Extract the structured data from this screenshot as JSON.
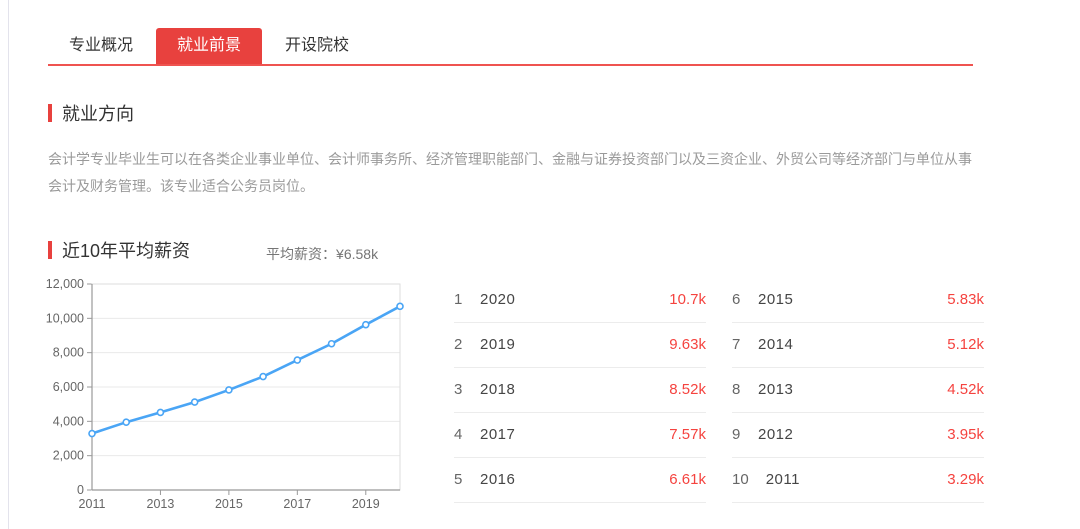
{
  "tabs": [
    {
      "label": "专业概况",
      "active": false
    },
    {
      "label": "就业前景",
      "active": true
    },
    {
      "label": "开设院校",
      "active": false
    }
  ],
  "employment_direction": {
    "title": "就业方向",
    "description": "会计学专业毕业生可以在各类企业事业单位、会计师事务所、经济管理职能部门、金融与证券投资部门以及三资企业、外贸公司等经济部门与单位从事会计及财务管理。该专业适合公务员岗位。"
  },
  "salary": {
    "title": "近10年平均薪资",
    "average_label": "平均薪资：¥6.58k",
    "ranking": [
      {
        "rank": "1",
        "year": "2020",
        "value": "10.7k"
      },
      {
        "rank": "2",
        "year": "2019",
        "value": "9.63k"
      },
      {
        "rank": "3",
        "year": "2018",
        "value": "8.52k"
      },
      {
        "rank": "4",
        "year": "2017",
        "value": "7.57k"
      },
      {
        "rank": "5",
        "year": "2016",
        "value": "6.61k"
      },
      {
        "rank": "6",
        "year": "2015",
        "value": "5.83k"
      },
      {
        "rank": "7",
        "year": "2014",
        "value": "5.12k"
      },
      {
        "rank": "8",
        "year": "2013",
        "value": "4.52k"
      },
      {
        "rank": "9",
        "year": "2012",
        "value": "3.95k"
      },
      {
        "rank": "10",
        "year": "2011",
        "value": "3.29k"
      }
    ]
  },
  "chart_data": {
    "type": "line",
    "title": "近10年平均薪资",
    "x": [
      2011,
      2012,
      2013,
      2014,
      2015,
      2016,
      2017,
      2018,
      2019,
      2020
    ],
    "values": [
      3290,
      3950,
      4520,
      5120,
      5830,
      6610,
      7570,
      8520,
      9630,
      10700
    ],
    "xlabel": "",
    "ylabel": "",
    "ylim": [
      0,
      12000
    ],
    "ytick_step": 2000,
    "xticks_shown": [
      2011,
      2013,
      2015,
      2017,
      2019
    ],
    "grid": "horizontal",
    "legend": "none",
    "marker": "open-circle"
  },
  "colors": {
    "accent_red": "#e8413e",
    "underline_red": "#ef5350",
    "value_red": "#f5433f",
    "line_blue": "#4aa5f5",
    "grid_gray": "#e9e9e9",
    "axis_gray": "#999999",
    "tick_label_gray": "#666666"
  }
}
